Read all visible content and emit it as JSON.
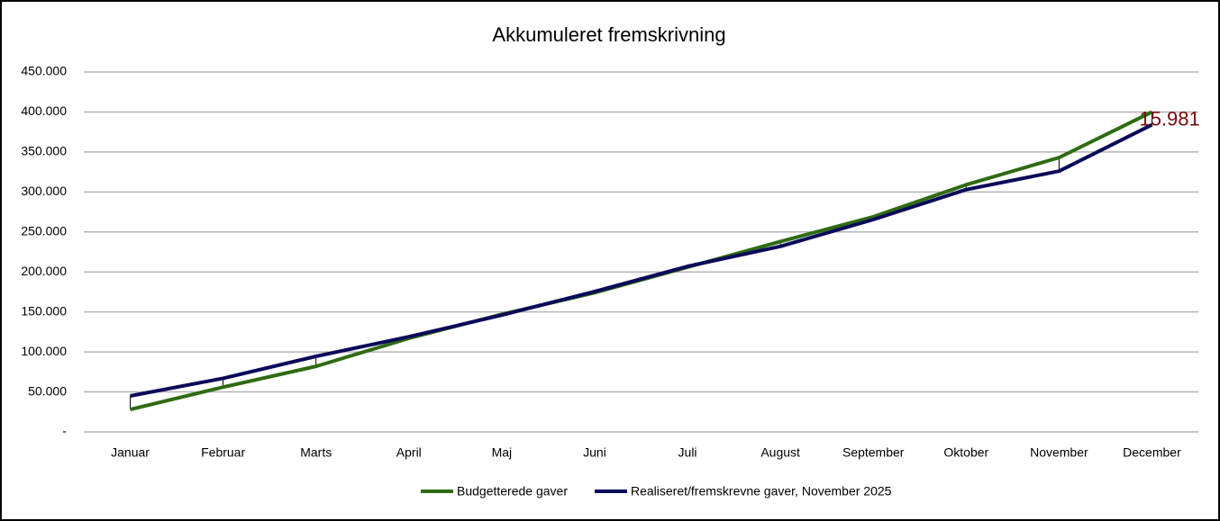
{
  "chart_data": {
    "type": "line",
    "title": "Akkumuleret fremskrivning",
    "categories": [
      "Januar",
      "Februar",
      "Marts",
      "April",
      "Maj",
      "Juni",
      "Juli",
      "August",
      "September",
      "Oktober",
      "November",
      "December"
    ],
    "series": [
      {
        "name": "Budgetterede gaver",
        "color": "#2e6b12",
        "values": [
          28000,
          56000,
          82000,
          117000,
          147000,
          174000,
          206000,
          238000,
          269000,
          309000,
          343000,
          400000
        ]
      },
      {
        "name": "Realiseret/fremskrevne gaver, November 2025",
        "color": "#0a0a5a",
        "values": [
          45000,
          67000,
          94500,
          119000,
          146000,
          175500,
          207000,
          232000,
          265500,
          303000,
          326000,
          384019
        ]
      }
    ],
    "annotation": "15.981",
    "ylim": [
      0,
      450000
    ],
    "yticks": [
      {
        "value": 0,
        "label": "-"
      },
      {
        "value": 50000,
        "label": "50.000"
      },
      {
        "value": 100000,
        "label": "100.000"
      },
      {
        "value": 150000,
        "label": "150.000"
      },
      {
        "value": 200000,
        "label": "200.000"
      },
      {
        "value": 250000,
        "label": "250.000"
      },
      {
        "value": 300000,
        "label": "300.000"
      },
      {
        "value": 350000,
        "label": "350.000"
      },
      {
        "value": 400000,
        "label": "400.000"
      },
      {
        "value": 450000,
        "label": "450.000"
      }
    ],
    "grid": true
  }
}
